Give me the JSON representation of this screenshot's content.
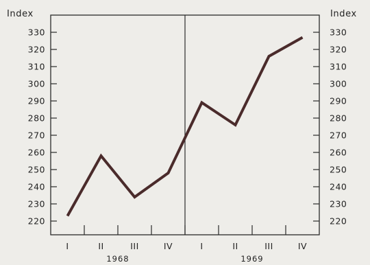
{
  "chart_data": {
    "type": "line",
    "title": "",
    "ylabel_left": "Index",
    "ylabel_right": "Index",
    "ylim": [
      215,
      340
    ],
    "yticks": [
      220,
      230,
      240,
      250,
      260,
      270,
      280,
      290,
      300,
      310,
      320,
      330
    ],
    "categories": [
      "I",
      "II",
      "III",
      "IV",
      "I",
      "II",
      "III",
      "IV"
    ],
    "years": [
      {
        "label": "1968",
        "quarters": [
          0,
          3
        ]
      },
      {
        "label": "1969",
        "quarters": [
          4,
          7
        ]
      }
    ],
    "series": [
      {
        "values": [
          223,
          258,
          234,
          248,
          289,
          276,
          316,
          327
        ],
        "color": "#4a2b2b"
      }
    ],
    "grid": false,
    "year_divider": true
  }
}
